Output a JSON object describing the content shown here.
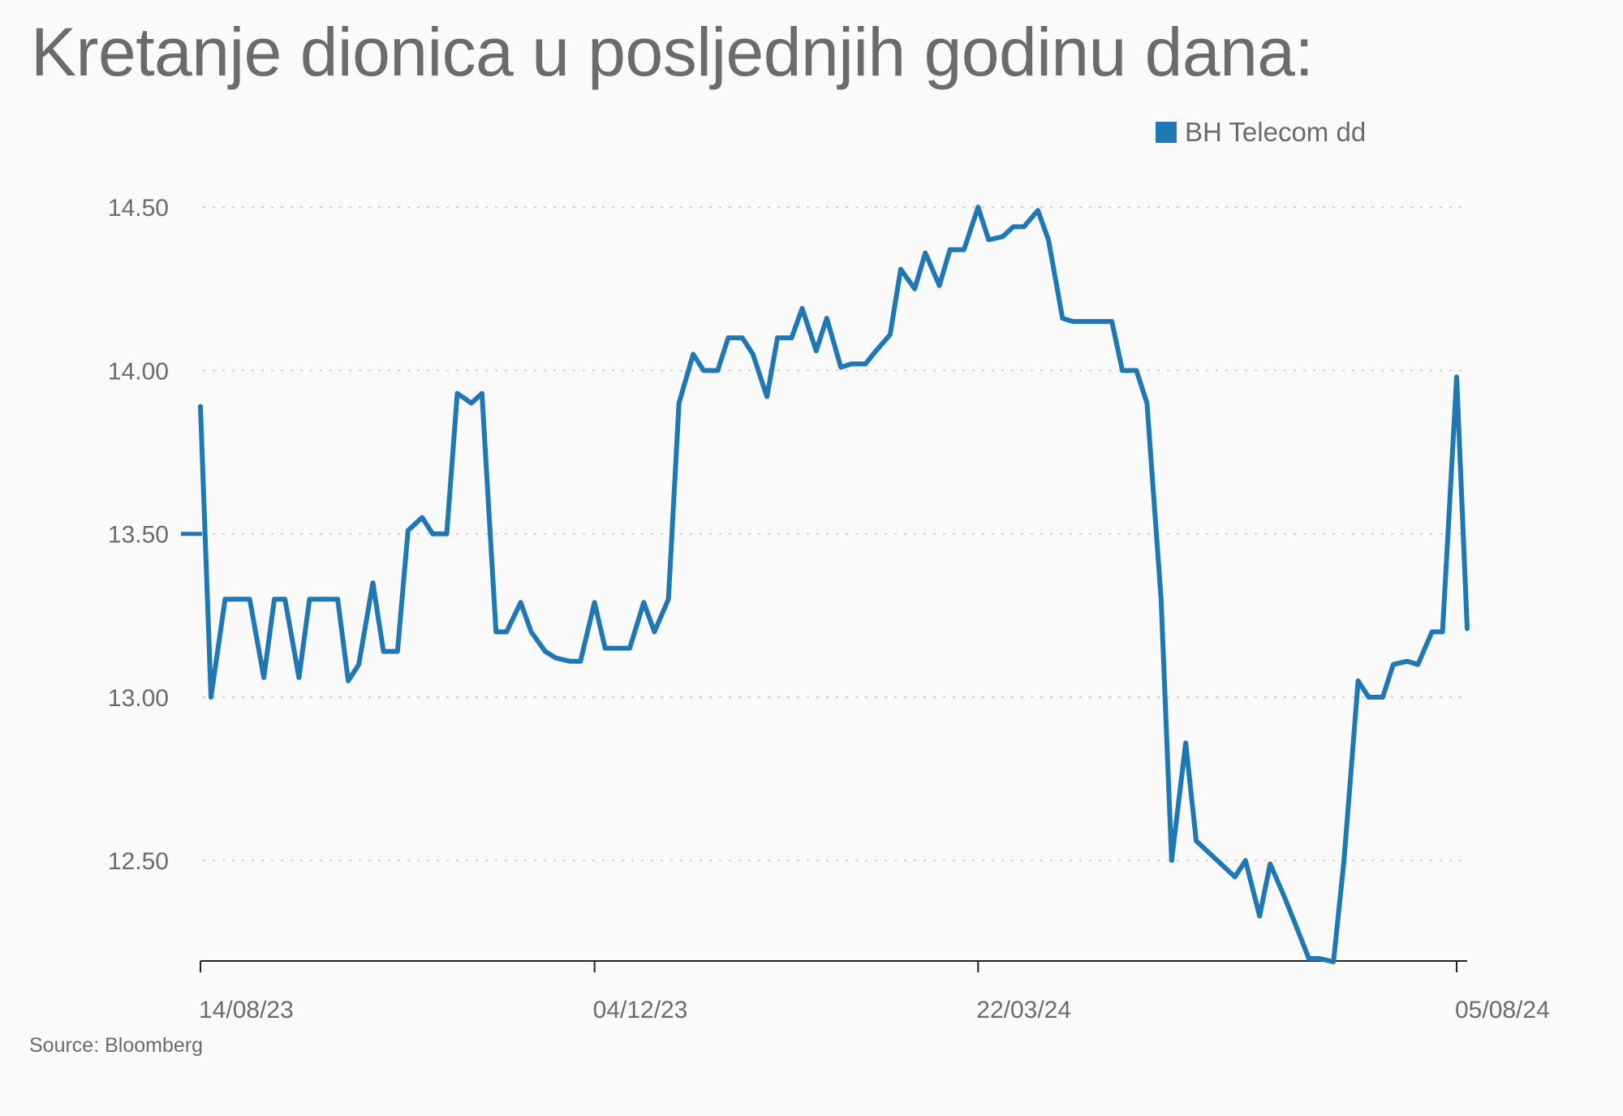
{
  "chart_data": {
    "type": "line",
    "title": "Kretanje dionica u posljednjih godinu dana:",
    "source": "Source: Bloomberg",
    "xlabel": "",
    "ylabel": "",
    "x_range": [
      "2023-08-14",
      "2024-08-08"
    ],
    "ylim": [
      12.19,
      14.6
    ],
    "grid": "horizontal dotted",
    "legend_position": "top-right",
    "y_ticks": [
      {
        "value": 14.5,
        "label": "14.50"
      },
      {
        "value": 14.0,
        "label": "14.00"
      },
      {
        "value": 13.5,
        "label": "13.50"
      },
      {
        "value": 13.0,
        "label": "13.00"
      },
      {
        "value": 12.5,
        "label": "12.50"
      }
    ],
    "x_ticks": [
      {
        "date": "2023-08-14",
        "label": "14/08/23"
      },
      {
        "date": "2023-12-04",
        "label": "04/12/23"
      },
      {
        "date": "2024-03-22",
        "label": "22/03/24"
      },
      {
        "date": "2024-08-05",
        "label": "05/08/24"
      }
    ],
    "series": [
      {
        "name": "BH Telecom dd",
        "color": "#1f77b4",
        "points": [
          [
            "2023-08-14",
            13.89
          ],
          [
            "2023-08-17",
            13.0
          ],
          [
            "2023-08-21",
            13.3
          ],
          [
            "2023-08-24",
            13.3
          ],
          [
            "2023-08-28",
            13.3
          ],
          [
            "2023-09-01",
            13.06
          ],
          [
            "2023-09-04",
            13.3
          ],
          [
            "2023-09-07",
            13.3
          ],
          [
            "2023-09-11",
            13.06
          ],
          [
            "2023-09-14",
            13.3
          ],
          [
            "2023-09-18",
            13.3
          ],
          [
            "2023-09-22",
            13.3
          ],
          [
            "2023-09-25",
            13.05
          ],
          [
            "2023-09-28",
            13.1
          ],
          [
            "2023-10-02",
            13.35
          ],
          [
            "2023-10-05",
            13.14
          ],
          [
            "2023-10-09",
            13.14
          ],
          [
            "2023-10-12",
            13.51
          ],
          [
            "2023-10-16",
            13.55
          ],
          [
            "2023-10-19",
            13.5
          ],
          [
            "2023-10-23",
            13.5
          ],
          [
            "2023-10-26",
            13.93
          ],
          [
            "2023-10-30",
            13.9
          ],
          [
            "2023-11-02",
            13.93
          ],
          [
            "2023-11-06",
            13.2
          ],
          [
            "2023-11-09",
            13.2
          ],
          [
            "2023-11-13",
            13.29
          ],
          [
            "2023-11-16",
            13.2
          ],
          [
            "2023-11-20",
            13.14
          ],
          [
            "2023-11-23",
            13.12
          ],
          [
            "2023-11-27",
            13.11
          ],
          [
            "2023-11-30",
            13.11
          ],
          [
            "2023-12-04",
            13.29
          ],
          [
            "2023-12-07",
            13.15
          ],
          [
            "2023-12-11",
            13.15
          ],
          [
            "2023-12-14",
            13.15
          ],
          [
            "2023-12-18",
            13.29
          ],
          [
            "2023-12-21",
            13.2
          ],
          [
            "2023-12-25",
            13.3
          ],
          [
            "2023-12-28",
            13.9
          ],
          [
            "2024-01-01",
            14.05
          ],
          [
            "2024-01-04",
            14.0
          ],
          [
            "2024-01-08",
            14.0
          ],
          [
            "2024-01-11",
            14.1
          ],
          [
            "2024-01-15",
            14.1
          ],
          [
            "2024-01-18",
            14.05
          ],
          [
            "2024-01-22",
            13.92
          ],
          [
            "2024-01-25",
            14.1
          ],
          [
            "2024-01-29",
            14.1
          ],
          [
            "2024-02-01",
            14.19
          ],
          [
            "2024-02-05",
            14.06
          ],
          [
            "2024-02-08",
            14.16
          ],
          [
            "2024-02-12",
            14.01
          ],
          [
            "2024-02-15",
            14.02
          ],
          [
            "2024-02-19",
            14.02
          ],
          [
            "2024-02-22",
            14.06
          ],
          [
            "2024-02-26",
            14.11
          ],
          [
            "2024-02-29",
            14.31
          ],
          [
            "2024-03-04",
            14.25
          ],
          [
            "2024-03-07",
            14.36
          ],
          [
            "2024-03-11",
            14.26
          ],
          [
            "2024-03-14",
            14.37
          ],
          [
            "2024-03-18",
            14.37
          ],
          [
            "2024-03-22",
            14.5
          ],
          [
            "2024-03-25",
            14.4
          ],
          [
            "2024-03-29",
            14.41
          ],
          [
            "2024-04-01",
            14.44
          ],
          [
            "2024-04-04",
            14.44
          ],
          [
            "2024-04-08",
            14.49
          ],
          [
            "2024-04-11",
            14.4
          ],
          [
            "2024-04-15",
            14.16
          ],
          [
            "2024-04-18",
            14.15
          ],
          [
            "2024-04-22",
            14.15
          ],
          [
            "2024-04-25",
            14.15
          ],
          [
            "2024-04-29",
            14.15
          ],
          [
            "2024-05-02",
            14.0
          ],
          [
            "2024-05-06",
            14.0
          ],
          [
            "2024-05-09",
            13.9
          ],
          [
            "2024-05-13",
            13.3
          ],
          [
            "2024-05-16",
            12.5
          ],
          [
            "2024-05-20",
            12.86
          ],
          [
            "2024-05-23",
            12.56
          ],
          [
            "2024-05-27",
            12.52
          ],
          [
            "2024-05-30",
            12.49
          ],
          [
            "2024-06-03",
            12.45
          ],
          [
            "2024-06-06",
            12.5
          ],
          [
            "2024-06-10",
            12.33
          ],
          [
            "2024-06-13",
            12.49
          ],
          [
            "2024-06-17",
            12.39
          ],
          [
            "2024-06-20",
            12.31
          ],
          [
            "2024-06-24",
            12.2
          ],
          [
            "2024-06-27",
            12.2
          ],
          [
            "2024-07-01",
            12.19
          ],
          [
            "2024-07-04",
            12.5
          ],
          [
            "2024-07-08",
            13.05
          ],
          [
            "2024-07-11",
            13.0
          ],
          [
            "2024-07-15",
            13.0
          ],
          [
            "2024-07-18",
            13.1
          ],
          [
            "2024-07-22",
            13.11
          ],
          [
            "2024-07-25",
            13.1
          ],
          [
            "2024-07-29",
            13.2
          ],
          [
            "2024-08-01",
            13.2
          ],
          [
            "2024-08-05",
            13.98
          ],
          [
            "2024-08-08",
            13.21
          ]
        ]
      }
    ]
  }
}
